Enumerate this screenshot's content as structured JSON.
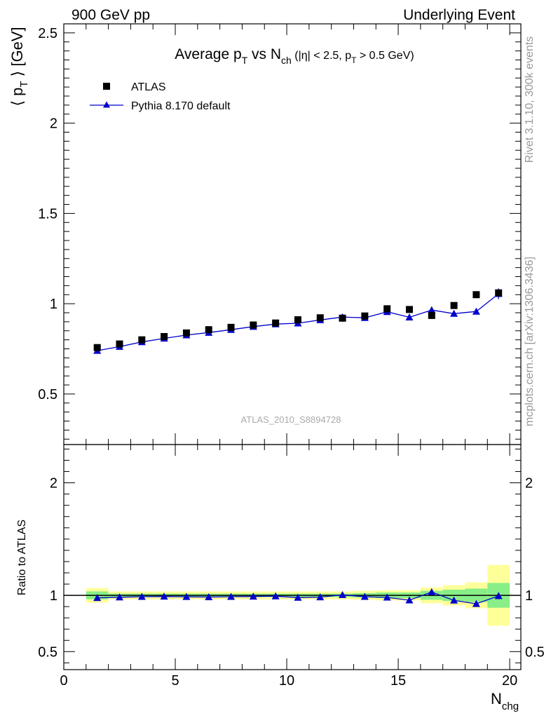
{
  "header": {
    "left": "900 GeV pp",
    "right": "Underlying Event"
  },
  "side_labels": {
    "rivet": "Rivet 3.1.10,  300k events",
    "mcplots": "mcplots.cern.ch [arXiv:1306.3436]"
  },
  "chart_data": [
    {
      "type": "scatter",
      "title": "Average pT vs Nch (|η| < 2.5, pT > 0.5 GeV)",
      "ylabel": "⟨ pT ⟩ [GeV]",
      "xlabel": "Nchg",
      "watermark": "ATLAS_2010_S8894728",
      "xlim": [
        0,
        20.5
      ],
      "ylim": [
        0.22,
        2.55
      ],
      "yticks": [
        0.5,
        1,
        1.5,
        2,
        2.5
      ],
      "ytick_labels": [
        "0.5",
        "1",
        "1.5",
        "2",
        "2.5"
      ],
      "legend_position": "top-left",
      "series": [
        {
          "name": "ATLAS",
          "marker": "square",
          "color": "#000000",
          "x": [
            1.5,
            2.5,
            3.5,
            4.5,
            5.5,
            6.5,
            7.5,
            8.5,
            9.5,
            10.5,
            11.5,
            12.5,
            13.5,
            14.5,
            15.5,
            16.5,
            17.5,
            18.5,
            19.5
          ],
          "y": [
            0.757,
            0.777,
            0.8,
            0.818,
            0.838,
            0.856,
            0.869,
            0.882,
            0.893,
            0.911,
            0.922,
            0.92,
            0.932,
            0.972,
            0.968,
            0.935,
            0.99,
            1.05,
            1.06
          ],
          "yerr": [
            0.005,
            0.005,
            0.005,
            0.005,
            0.005,
            0.005,
            0.005,
            0.005,
            0.005,
            0.006,
            0.006,
            0.007,
            0.008,
            0.008,
            0.01,
            0.01,
            0.012,
            0.012,
            0.02
          ]
        },
        {
          "name": "Pythia 8.170 default",
          "marker": "triangle",
          "color": "#0000cc",
          "x": [
            1.5,
            2.5,
            3.5,
            4.5,
            5.5,
            6.5,
            7.5,
            8.5,
            9.5,
            10.5,
            11.5,
            12.5,
            13.5,
            14.5,
            15.5,
            16.5,
            17.5,
            18.5,
            19.5
          ],
          "y": [
            0.74,
            0.762,
            0.788,
            0.808,
            0.826,
            0.84,
            0.856,
            0.873,
            0.887,
            0.892,
            0.91,
            0.926,
            0.922,
            0.955,
            0.925,
            0.965,
            0.945,
            0.957,
            1.055
          ],
          "yerr": [
            0.004,
            0.004,
            0.004,
            0.004,
            0.004,
            0.004,
            0.004,
            0.004,
            0.005,
            0.005,
            0.006,
            0.006,
            0.007,
            0.008,
            0.008,
            0.01,
            0.012,
            0.015,
            0.03
          ]
        }
      ]
    },
    {
      "type": "scatter",
      "ylabel": "Ratio to ATLAS",
      "xlabel": "Nchg",
      "xlim": [
        0,
        20.5
      ],
      "ylim": [
        0.34,
        2.34
      ],
      "yticks": [
        0.5,
        1,
        2
      ],
      "ytick_labels": [
        "0.5",
        "1",
        "2"
      ],
      "xticks": [
        0,
        5,
        10,
        15,
        20
      ],
      "xtick_labels": [
        "0",
        "5",
        "10",
        "15",
        "20"
      ],
      "bands": {
        "bin_edges": [
          1,
          2,
          3,
          4,
          5,
          6,
          7,
          8,
          9,
          10,
          11,
          12,
          13,
          14,
          15,
          16,
          17,
          18,
          19,
          20
        ],
        "yellow_half_width": [
          0.065,
          0.035,
          0.035,
          0.035,
          0.035,
          0.035,
          0.035,
          0.035,
          0.035,
          0.035,
          0.035,
          0.035,
          0.04,
          0.045,
          0.045,
          0.07,
          0.09,
          0.115,
          0.27
        ],
        "green_half_width": [
          0.035,
          0.015,
          0.015,
          0.015,
          0.015,
          0.015,
          0.015,
          0.015,
          0.015,
          0.015,
          0.015,
          0.015,
          0.02,
          0.025,
          0.025,
          0.04,
          0.05,
          0.06,
          0.11
        ],
        "yellow_color": "#ffff99",
        "green_color": "#88ee88"
      },
      "series": [
        {
          "name": "Pythia 8.170 default",
          "marker": "triangle",
          "color": "#0000cc",
          "x": [
            1.5,
            2.5,
            3.5,
            4.5,
            5.5,
            6.5,
            7.5,
            8.5,
            9.5,
            10.5,
            11.5,
            12.5,
            13.5,
            14.5,
            15.5,
            16.5,
            17.5,
            18.5,
            19.5
          ],
          "y": [
            0.978,
            0.983,
            0.988,
            0.99,
            0.987,
            0.985,
            0.988,
            0.99,
            0.993,
            0.98,
            0.984,
            1.004,
            0.988,
            0.982,
            0.957,
            1.03,
            0.955,
            0.925,
            0.995
          ],
          "yerr": [
            0.01,
            0.008,
            0.008,
            0.008,
            0.008,
            0.008,
            0.008,
            0.008,
            0.008,
            0.008,
            0.008,
            0.01,
            0.01,
            0.01,
            0.012,
            0.015,
            0.015,
            0.02,
            0.03
          ]
        }
      ]
    }
  ]
}
